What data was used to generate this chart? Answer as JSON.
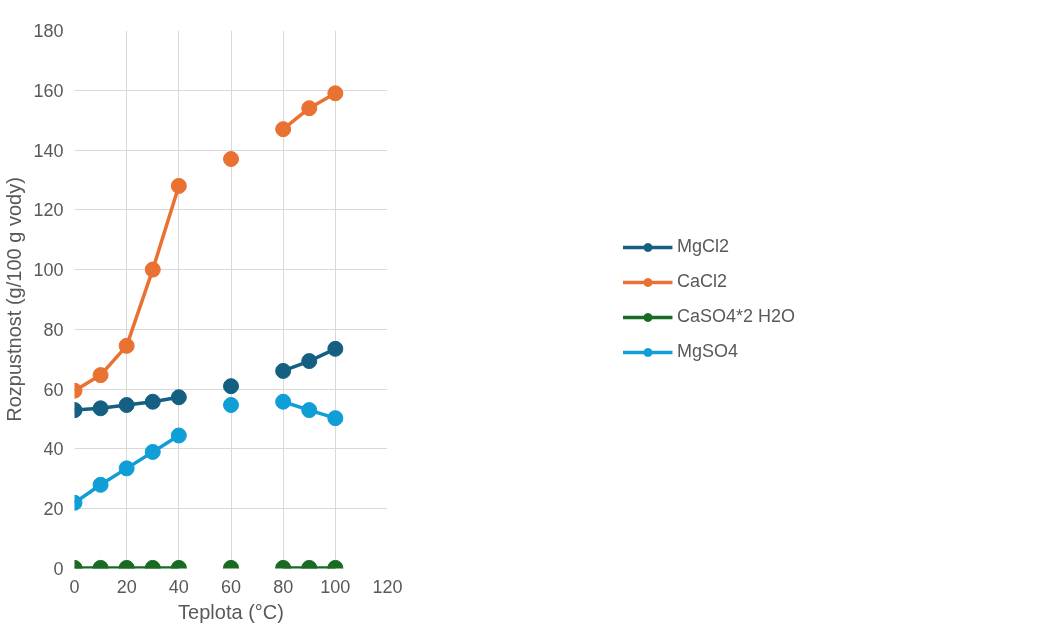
{
  "chart_data": {
    "type": "line",
    "xlabel": "Teplota (°C)",
    "ylabel": "Rozpustnost (g/100 g vody)",
    "x": [
      0,
      10,
      20,
      30,
      40,
      50,
      60,
      70,
      80,
      90,
      100
    ],
    "series": [
      {
        "name": "MgCl2",
        "color": "#156082",
        "values": [
          53,
          53.6,
          54.7,
          55.8,
          57.3,
          null,
          61,
          null,
          66.1,
          69.4,
          73.5
        ]
      },
      {
        "name": "CaCl2",
        "color": "#e97132",
        "values": [
          59.5,
          64.7,
          74.5,
          100,
          128,
          null,
          137,
          null,
          147,
          154,
          159
        ]
      },
      {
        "name": "CaSO4*2 H2O",
        "color": "#196b24",
        "values": [
          0.2,
          0.2,
          0.2,
          0.2,
          0.2,
          null,
          0.2,
          null,
          0.2,
          0.2,
          0.2
        ]
      },
      {
        "name": "MgSO4",
        "color": "#0f9ed5",
        "values": [
          22,
          28,
          33.5,
          39,
          44.5,
          null,
          54.7,
          null,
          55.8,
          53,
          50.3
        ]
      }
    ],
    "xlim": [
      0,
      120
    ],
    "xticks": [
      0,
      20,
      40,
      60,
      80,
      100,
      120
    ],
    "ylim": [
      0,
      180
    ],
    "yticks": [
      0,
      20,
      40,
      60,
      80,
      100,
      120,
      140,
      160,
      180
    ],
    "grid": true,
    "legend": "right",
    "marker": "circle",
    "line_style": "solid"
  }
}
